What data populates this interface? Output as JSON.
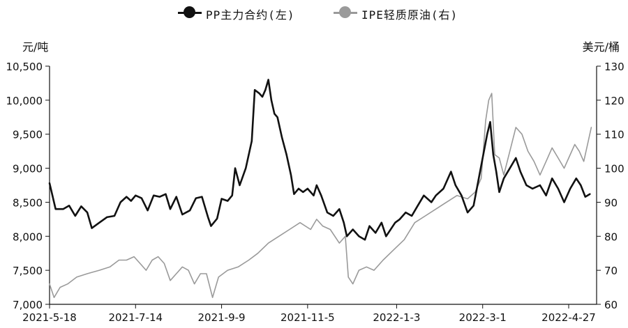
{
  "chart_data": {
    "type": "line",
    "legend_position": "top",
    "grid": false,
    "y_left_label": "元/吨",
    "y_right_label": "美元/桶",
    "y_left_lim": [
      7000,
      10500
    ],
    "y_right_lim": [
      60,
      130
    ],
    "y_left_ticks": [
      "7,000",
      "7,500",
      "8,000",
      "8,500",
      "9,000",
      "9,500",
      "10,000",
      "10,500"
    ],
    "y_right_ticks": [
      "60",
      "70",
      "80",
      "90",
      "100",
      "110",
      "120",
      "130"
    ],
    "x_ticks": [
      "2021-5-18",
      "2021-7-14",
      "2021-9-9",
      "2021-11-5",
      "2022-1-3",
      "2022-3-1",
      "2022-4-27"
    ],
    "series": [
      {
        "name": "PP主力合约(左)",
        "axis": "left",
        "color": "#111111",
        "points": [
          [
            "2021-5-18",
            8780
          ],
          [
            "2021-5-22",
            8400
          ],
          [
            "2021-5-27",
            8400
          ],
          [
            "2021-5-31",
            8450
          ],
          [
            "2021-6-4",
            8300
          ],
          [
            "2021-6-8",
            8440
          ],
          [
            "2021-6-12",
            8350
          ],
          [
            "2021-6-15",
            8120
          ],
          [
            "2021-6-20",
            8200
          ],
          [
            "2021-6-25",
            8280
          ],
          [
            "2021-6-30",
            8300
          ],
          [
            "2021-7-4",
            8500
          ],
          [
            "2021-7-8",
            8580
          ],
          [
            "2021-7-11",
            8520
          ],
          [
            "2021-7-14",
            8600
          ],
          [
            "2021-7-18",
            8560
          ],
          [
            "2021-7-22",
            8380
          ],
          [
            "2021-7-26",
            8600
          ],
          [
            "2021-7-30",
            8580
          ],
          [
            "2021-8-3",
            8620
          ],
          [
            "2021-8-6",
            8400
          ],
          [
            "2021-8-10",
            8580
          ],
          [
            "2021-8-14",
            8320
          ],
          [
            "2021-8-19",
            8380
          ],
          [
            "2021-8-23",
            8560
          ],
          [
            "2021-8-27",
            8580
          ],
          [
            "2021-8-31",
            8280
          ],
          [
            "2021-9-2",
            8150
          ],
          [
            "2021-9-6",
            8260
          ],
          [
            "2021-9-9",
            8550
          ],
          [
            "2021-9-13",
            8520
          ],
          [
            "2021-9-16",
            8600
          ],
          [
            "2021-9-18",
            9000
          ],
          [
            "2021-9-21",
            8750
          ],
          [
            "2021-9-25",
            9000
          ],
          [
            "2021-9-29",
            9400
          ],
          [
            "2021-10-1",
            10150
          ],
          [
            "2021-10-4",
            10100
          ],
          [
            "2021-10-6",
            10050
          ],
          [
            "2021-10-8",
            10150
          ],
          [
            "2021-10-10",
            10300
          ],
          [
            "2021-10-12",
            10000
          ],
          [
            "2021-10-14",
            9800
          ],
          [
            "2021-10-16",
            9750
          ],
          [
            "2021-10-19",
            9450
          ],
          [
            "2021-10-22",
            9200
          ],
          [
            "2021-10-25",
            8900
          ],
          [
            "2021-10-27",
            8620
          ],
          [
            "2021-10-30",
            8700
          ],
          [
            "2021-11-2",
            8650
          ],
          [
            "2021-11-5",
            8700
          ],
          [
            "2021-11-9",
            8600
          ],
          [
            "2021-11-11",
            8750
          ],
          [
            "2021-11-14",
            8600
          ],
          [
            "2021-11-18",
            8350
          ],
          [
            "2021-11-22",
            8300
          ],
          [
            "2021-11-26",
            8400
          ],
          [
            "2021-11-29",
            8200
          ],
          [
            "2021-12-1",
            8000
          ],
          [
            "2021-12-5",
            8100
          ],
          [
            "2021-12-9",
            8000
          ],
          [
            "2021-12-13",
            7950
          ],
          [
            "2021-12-16",
            8150
          ],
          [
            "2021-12-20",
            8050
          ],
          [
            "2021-12-24",
            8200
          ],
          [
            "2021-12-27",
            8000
          ],
          [
            "2022-1-2",
            8200
          ],
          [
            "2022-1-5",
            8250
          ],
          [
            "2022-1-9",
            8350
          ],
          [
            "2022-1-13",
            8300
          ],
          [
            "2022-1-17",
            8450
          ],
          [
            "2022-1-21",
            8600
          ],
          [
            "2022-1-26",
            8500
          ],
          [
            "2022-1-29",
            8600
          ],
          [
            "2022-2-3",
            8700
          ],
          [
            "2022-2-8",
            8950
          ],
          [
            "2022-2-11",
            8750
          ],
          [
            "2022-2-15",
            8600
          ],
          [
            "2022-2-19",
            8350
          ],
          [
            "2022-2-23",
            8450
          ],
          [
            "2022-2-26",
            8800
          ],
          [
            "2022-3-1",
            9150
          ],
          [
            "2022-3-4",
            9500
          ],
          [
            "2022-3-6",
            9680
          ],
          [
            "2022-3-8",
            9200
          ],
          [
            "2022-3-10",
            8950
          ],
          [
            "2022-3-12",
            8650
          ],
          [
            "2022-3-15",
            8850
          ],
          [
            "2022-3-19",
            9000
          ],
          [
            "2022-3-23",
            9150
          ],
          [
            "2022-3-26",
            8950
          ],
          [
            "2022-3-30",
            8750
          ],
          [
            "2022-4-3",
            8700
          ],
          [
            "2022-4-8",
            8750
          ],
          [
            "2022-4-12",
            8600
          ],
          [
            "2022-4-16",
            8850
          ],
          [
            "2022-4-20",
            8700
          ],
          [
            "2022-4-24",
            8500
          ],
          [
            "2022-4-28",
            8700
          ],
          [
            "2022-5-2",
            8850
          ],
          [
            "2022-5-5",
            8750
          ],
          [
            "2022-5-8",
            8580
          ],
          [
            "2022-5-11",
            8620
          ]
        ]
      },
      {
        "name": "IPE轻质原油(右)",
        "axis": "right",
        "color": "#9a9a9a",
        "points": [
          [
            "2021-5-18",
            66
          ],
          [
            "2021-5-21",
            62
          ],
          [
            "2021-5-25",
            65
          ],
          [
            "2021-5-30",
            66
          ],
          [
            "2021-6-5",
            68
          ],
          [
            "2021-6-12",
            69
          ],
          [
            "2021-6-20",
            70
          ],
          [
            "2021-6-27",
            71
          ],
          [
            "2021-7-3",
            73
          ],
          [
            "2021-7-8",
            73
          ],
          [
            "2021-7-13",
            74
          ],
          [
            "2021-7-17",
            72
          ],
          [
            "2021-7-21",
            70
          ],
          [
            "2021-7-25",
            73
          ],
          [
            "2021-7-29",
            74
          ],
          [
            "2021-8-2",
            72
          ],
          [
            "2021-8-6",
            67
          ],
          [
            "2021-8-10",
            69
          ],
          [
            "2021-8-14",
            71
          ],
          [
            "2021-8-18",
            70
          ],
          [
            "2021-8-22",
            66
          ],
          [
            "2021-8-26",
            69
          ],
          [
            "2021-8-30",
            69
          ],
          [
            "2021-9-3",
            62
          ],
          [
            "2021-9-7",
            68
          ],
          [
            "2021-9-13",
            70
          ],
          [
            "2021-9-20",
            71
          ],
          [
            "2021-9-27",
            73
          ],
          [
            "2021-10-3",
            75
          ],
          [
            "2021-10-10",
            78
          ],
          [
            "2021-10-17",
            80
          ],
          [
            "2021-10-24",
            82
          ],
          [
            "2021-10-31",
            84
          ],
          [
            "2021-11-7",
            82
          ],
          [
            "2021-11-11",
            85
          ],
          [
            "2021-11-15",
            83
          ],
          [
            "2021-11-20",
            82
          ],
          [
            "2021-11-26",
            78
          ],
          [
            "2021-11-30",
            80
          ],
          [
            "2021-12-2",
            68
          ],
          [
            "2021-12-5",
            66
          ],
          [
            "2021-12-9",
            70
          ],
          [
            "2021-12-14",
            71
          ],
          [
            "2021-12-19",
            70
          ],
          [
            "2021-12-25",
            73
          ],
          [
            "2022-1-1",
            76
          ],
          [
            "2022-1-8",
            79
          ],
          [
            "2022-1-15",
            84
          ],
          [
            "2022-1-22",
            86
          ],
          [
            "2022-1-29",
            88
          ],
          [
            "2022-2-5",
            90
          ],
          [
            "2022-2-12",
            92
          ],
          [
            "2022-2-19",
            91
          ],
          [
            "2022-2-24",
            93
          ],
          [
            "2022-2-28",
            97
          ],
          [
            "2022-3-3",
            114
          ],
          [
            "2022-3-5",
            120
          ],
          [
            "2022-3-7",
            122
          ],
          [
            "2022-3-9",
            104
          ],
          [
            "2022-3-12",
            103
          ],
          [
            "2022-3-15",
            98
          ],
          [
            "2022-3-19",
            105
          ],
          [
            "2022-3-23",
            112
          ],
          [
            "2022-3-27",
            110
          ],
          [
            "2022-3-31",
            105
          ],
          [
            "2022-4-4",
            102
          ],
          [
            "2022-4-8",
            98
          ],
          [
            "2022-4-12",
            102
          ],
          [
            "2022-4-16",
            106
          ],
          [
            "2022-4-20",
            103
          ],
          [
            "2022-4-24",
            100
          ],
          [
            "2022-4-28",
            104
          ],
          [
            "2022-5-1",
            107
          ],
          [
            "2022-5-4",
            105
          ],
          [
            "2022-5-7",
            102
          ],
          [
            "2022-5-10",
            108
          ],
          [
            "2022-5-12",
            112
          ]
        ]
      }
    ]
  }
}
